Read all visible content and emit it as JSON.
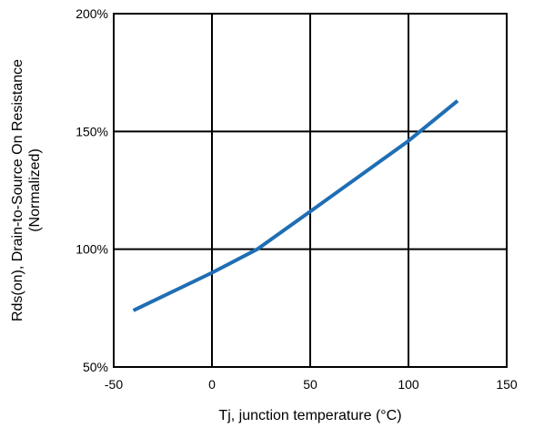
{
  "chart_data": {
    "type": "line",
    "title": "",
    "xlabel": "Tj, junction temperature (°C)",
    "ylabel_lines": [
      "Rds(on), Drain-to-Source On Resistance",
      "(Normalized)"
    ],
    "xlim": [
      -50,
      150
    ],
    "ylim": [
      50,
      200
    ],
    "x_ticks": [
      -50,
      0,
      50,
      100,
      150
    ],
    "x_tick_labels": [
      "-50",
      "0",
      "50",
      "100",
      "150"
    ],
    "y_ticks": [
      50,
      100,
      150,
      200
    ],
    "y_tick_labels": [
      "50%",
      "100%",
      "150%",
      "200%"
    ],
    "grid": true,
    "series": [
      {
        "color": "#1f6eb4",
        "x": [
          -40,
          0,
          23,
          50,
          100,
          125
        ],
        "y": [
          74,
          90,
          100,
          116,
          146,
          163
        ]
      }
    ]
  }
}
